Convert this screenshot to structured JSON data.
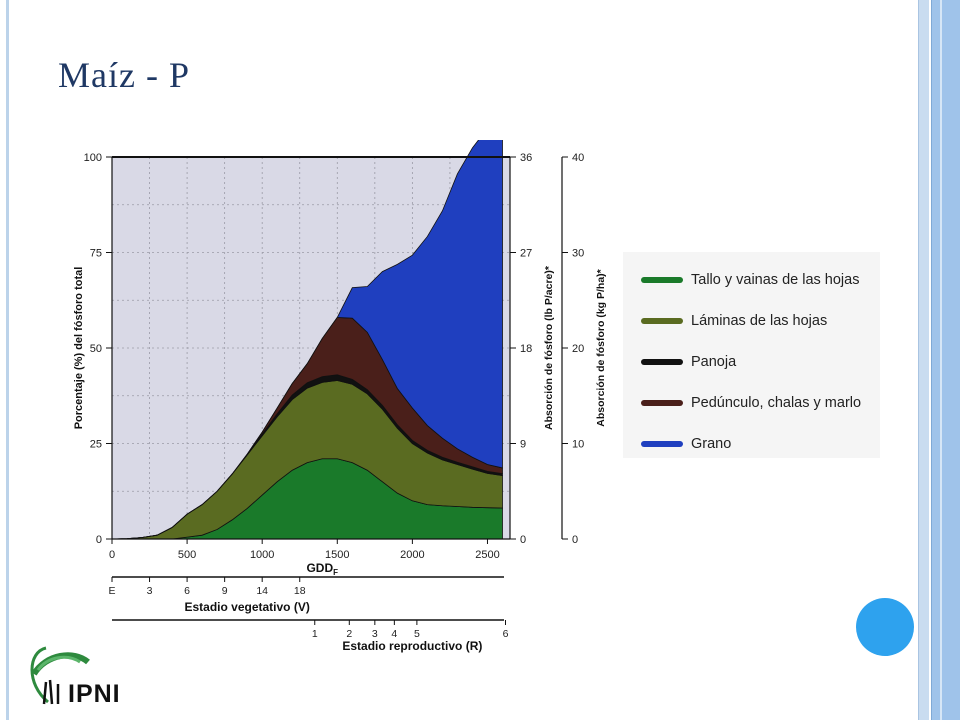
{
  "slide": {
    "title": "Maíz - P"
  },
  "logo": {
    "text": "IPNI"
  },
  "chart_data": {
    "type": "area",
    "stacked": true,
    "xlabel": "GDD",
    "xlabel_subscript": "F",
    "xlim": [
      0,
      2650
    ],
    "x_ticks": [
      0,
      500,
      1000,
      1500,
      2000,
      2500
    ],
    "ylabel": "Porcentaje (%) del fósforo total",
    "ylim": [
      0,
      100
    ],
    "y_ticks": [
      0,
      25,
      50,
      75,
      100
    ],
    "y2label": "Absorción de fósforo (lb P/acre)*",
    "y2_ticks": [
      0,
      9,
      18,
      27,
      36
    ],
    "y3label": "Absorción de fósforo (kg P/ha)*",
    "y3_ticks": [
      0,
      10,
      20,
      30,
      40
    ],
    "grid": true,
    "x": [
      0,
      100,
      200,
      300,
      400,
      500,
      600,
      700,
      800,
      900,
      1000,
      1100,
      1200,
      1300,
      1400,
      1500,
      1600,
      1700,
      1800,
      1900,
      2000,
      2100,
      2200,
      2300,
      2400,
      2500,
      2600
    ],
    "series": [
      {
        "name": "Tallo y vainas de las hojas",
        "color": "#1a7a2a",
        "values": [
          0,
          0,
          0,
          0,
          0,
          0.5,
          1,
          2.5,
          5,
          8,
          11.5,
          15,
          18,
          20,
          21,
          21,
          20,
          18,
          15,
          12,
          10,
          9,
          8.7,
          8.5,
          8.3,
          8.2,
          8.1
        ]
      },
      {
        "name": "Láminas de las hojas",
        "color": "#5a6b21",
        "values": [
          0,
          0.1,
          0.4,
          1,
          3,
          6,
          8,
          10,
          12,
          14,
          15.5,
          17,
          18.5,
          19.5,
          20,
          20.5,
          20.5,
          20,
          19,
          17,
          15,
          13.5,
          12,
          11,
          10,
          9,
          8.5
        ]
      },
      {
        "name": "Panoja",
        "color": "#111111",
        "values": [
          0,
          0,
          0,
          0,
          0,
          0,
          0,
          0,
          0,
          0.2,
          0.5,
          0.8,
          1.2,
          1.4,
          1.5,
          1.5,
          1.3,
          1.1,
          1,
          0.9,
          0.8,
          0.7,
          0.7,
          0.6,
          0.6,
          0.5,
          0.5
        ]
      },
      {
        "name": "Pedúnculo, chalas y marlo",
        "color": "#4a1f1a",
        "values": [
          0,
          0,
          0,
          0,
          0,
          0,
          0,
          0,
          0,
          0,
          0.5,
          1.5,
          3,
          5,
          10,
          15,
          16,
          15,
          12,
          9.5,
          8.5,
          6.5,
          5,
          3.5,
          2.5,
          1.8,
          1.5
        ]
      },
      {
        "name": "Grano",
        "color": "#1f3fbf",
        "values": [
          0,
          0,
          0,
          0,
          0,
          0,
          0,
          0,
          0,
          0,
          0,
          0,
          0,
          0,
          0,
          0,
          8,
          12,
          23,
          32.5,
          40,
          49.5,
          59.5,
          72,
          81,
          88,
          90
        ]
      }
    ],
    "vegetative_stage": {
      "label": "Estadio vegetativo (V)",
      "ticks": [
        {
          "label": "E",
          "gdd": 0
        },
        {
          "label": "3",
          "gdd": 250
        },
        {
          "label": "6",
          "gdd": 500
        },
        {
          "label": "9",
          "gdd": 750
        },
        {
          "label": "14",
          "gdd": 1000
        },
        {
          "label": "18",
          "gdd": 1250
        }
      ]
    },
    "reproductive_stage": {
      "label": "Estadio reproductivo (R)",
      "ticks": [
        {
          "label": "1",
          "gdd": 1350
        },
        {
          "label": "2",
          "gdd": 1580
        },
        {
          "label": "3",
          "gdd": 1750
        },
        {
          "label": "4",
          "gdd": 1880
        },
        {
          "label": "5",
          "gdd": 2030
        },
        {
          "label": "6",
          "gdd": 2620
        }
      ]
    }
  }
}
